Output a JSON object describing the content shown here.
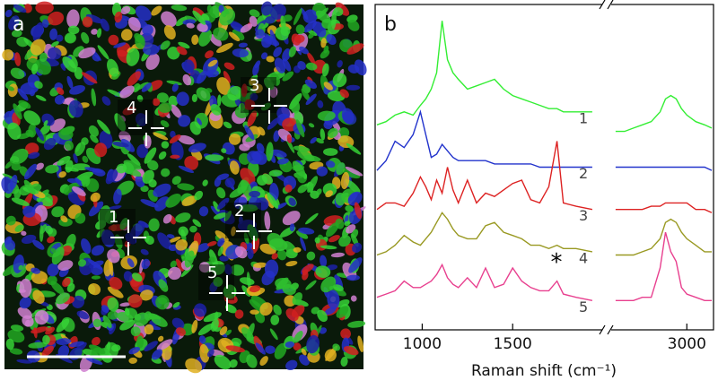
{
  "panel_a": {
    "label": "a",
    "markers": [
      "1",
      "2",
      "3",
      "4",
      "5"
    ]
  },
  "chart_data": {
    "type": "line",
    "panel_label": "b",
    "x_label": "Raman shift (cm⁻¹)",
    "annotation": "*",
    "xlim": [
      740,
      3150
    ],
    "xbreak": [
      2000,
      2570
    ],
    "xticks": [
      1000,
      1500,
      3000
    ],
    "ylim": [
      0,
      100
    ],
    "x": [
      750,
      800,
      850,
      900,
      950,
      990,
      1020,
      1050,
      1080,
      1110,
      1140,
      1170,
      1200,
      1250,
      1300,
      1350,
      1400,
      1450,
      1500,
      1550,
      1600,
      1650,
      1700,
      1745,
      1780,
      1850,
      1940,
      null,
      2600,
      2650,
      2700,
      2750,
      2800,
      2850,
      2880,
      2910,
      2940,
      2970,
      3000,
      3050,
      3100,
      3140
    ],
    "series": [
      {
        "name": "1",
        "color": "#33ee33",
        "values": [
          63,
          64,
          66,
          67,
          66,
          69,
          71,
          74,
          79,
          95,
          83,
          79,
          77,
          74,
          75,
          76,
          77,
          74,
          72,
          71,
          70,
          69,
          68,
          68,
          67,
          67,
          67,
          null,
          61,
          61,
          62,
          63,
          64,
          67,
          71,
          72,
          71,
          68,
          66,
          64,
          63,
          62
        ]
      },
      {
        "name": "2",
        "color": "#2233cc",
        "values": [
          49,
          52,
          58,
          56,
          60,
          67,
          60,
          53,
          54,
          57,
          55,
          53,
          52,
          52,
          52,
          52,
          51,
          51,
          51,
          51,
          51,
          50,
          50,
          50,
          50,
          50,
          50,
          null,
          50,
          50,
          50,
          50,
          50,
          50,
          50,
          50,
          50,
          50,
          50,
          50,
          50,
          49
        ]
      },
      {
        "name": "3",
        "color": "#dd2222",
        "values": [
          37,
          39,
          39,
          38,
          42,
          47,
          44,
          40,
          46,
          42,
          50,
          43,
          39,
          46,
          39,
          42,
          41,
          43,
          45,
          46,
          40,
          39,
          44,
          58,
          39,
          38,
          37,
          null,
          37,
          37,
          37,
          37,
          38,
          38,
          39,
          39,
          39,
          39,
          39,
          37,
          37,
          36
        ]
      },
      {
        "name": "4",
        "color": "#999922",
        "values": [
          23,
          24,
          26,
          29,
          27,
          26,
          28,
          30,
          33,
          36,
          34,
          31,
          29,
          28,
          28,
          32,
          33,
          30,
          29,
          28,
          26,
          26,
          25,
          26,
          25,
          25,
          24,
          null,
          23,
          23,
          23,
          24,
          25,
          28,
          33,
          34,
          33,
          30,
          28,
          26,
          24,
          24
        ]
      },
      {
        "name": "5",
        "color": "#e8408f",
        "values": [
          10,
          11,
          12,
          15,
          13,
          13,
          14,
          15,
          17,
          20,
          16,
          14,
          13,
          16,
          13,
          19,
          13,
          14,
          19,
          15,
          13,
          12,
          12,
          15,
          11,
          10,
          9,
          null,
          9,
          9,
          9,
          10,
          10,
          19,
          30,
          24,
          21,
          13,
          11,
          10,
          9,
          9
        ]
      }
    ]
  }
}
